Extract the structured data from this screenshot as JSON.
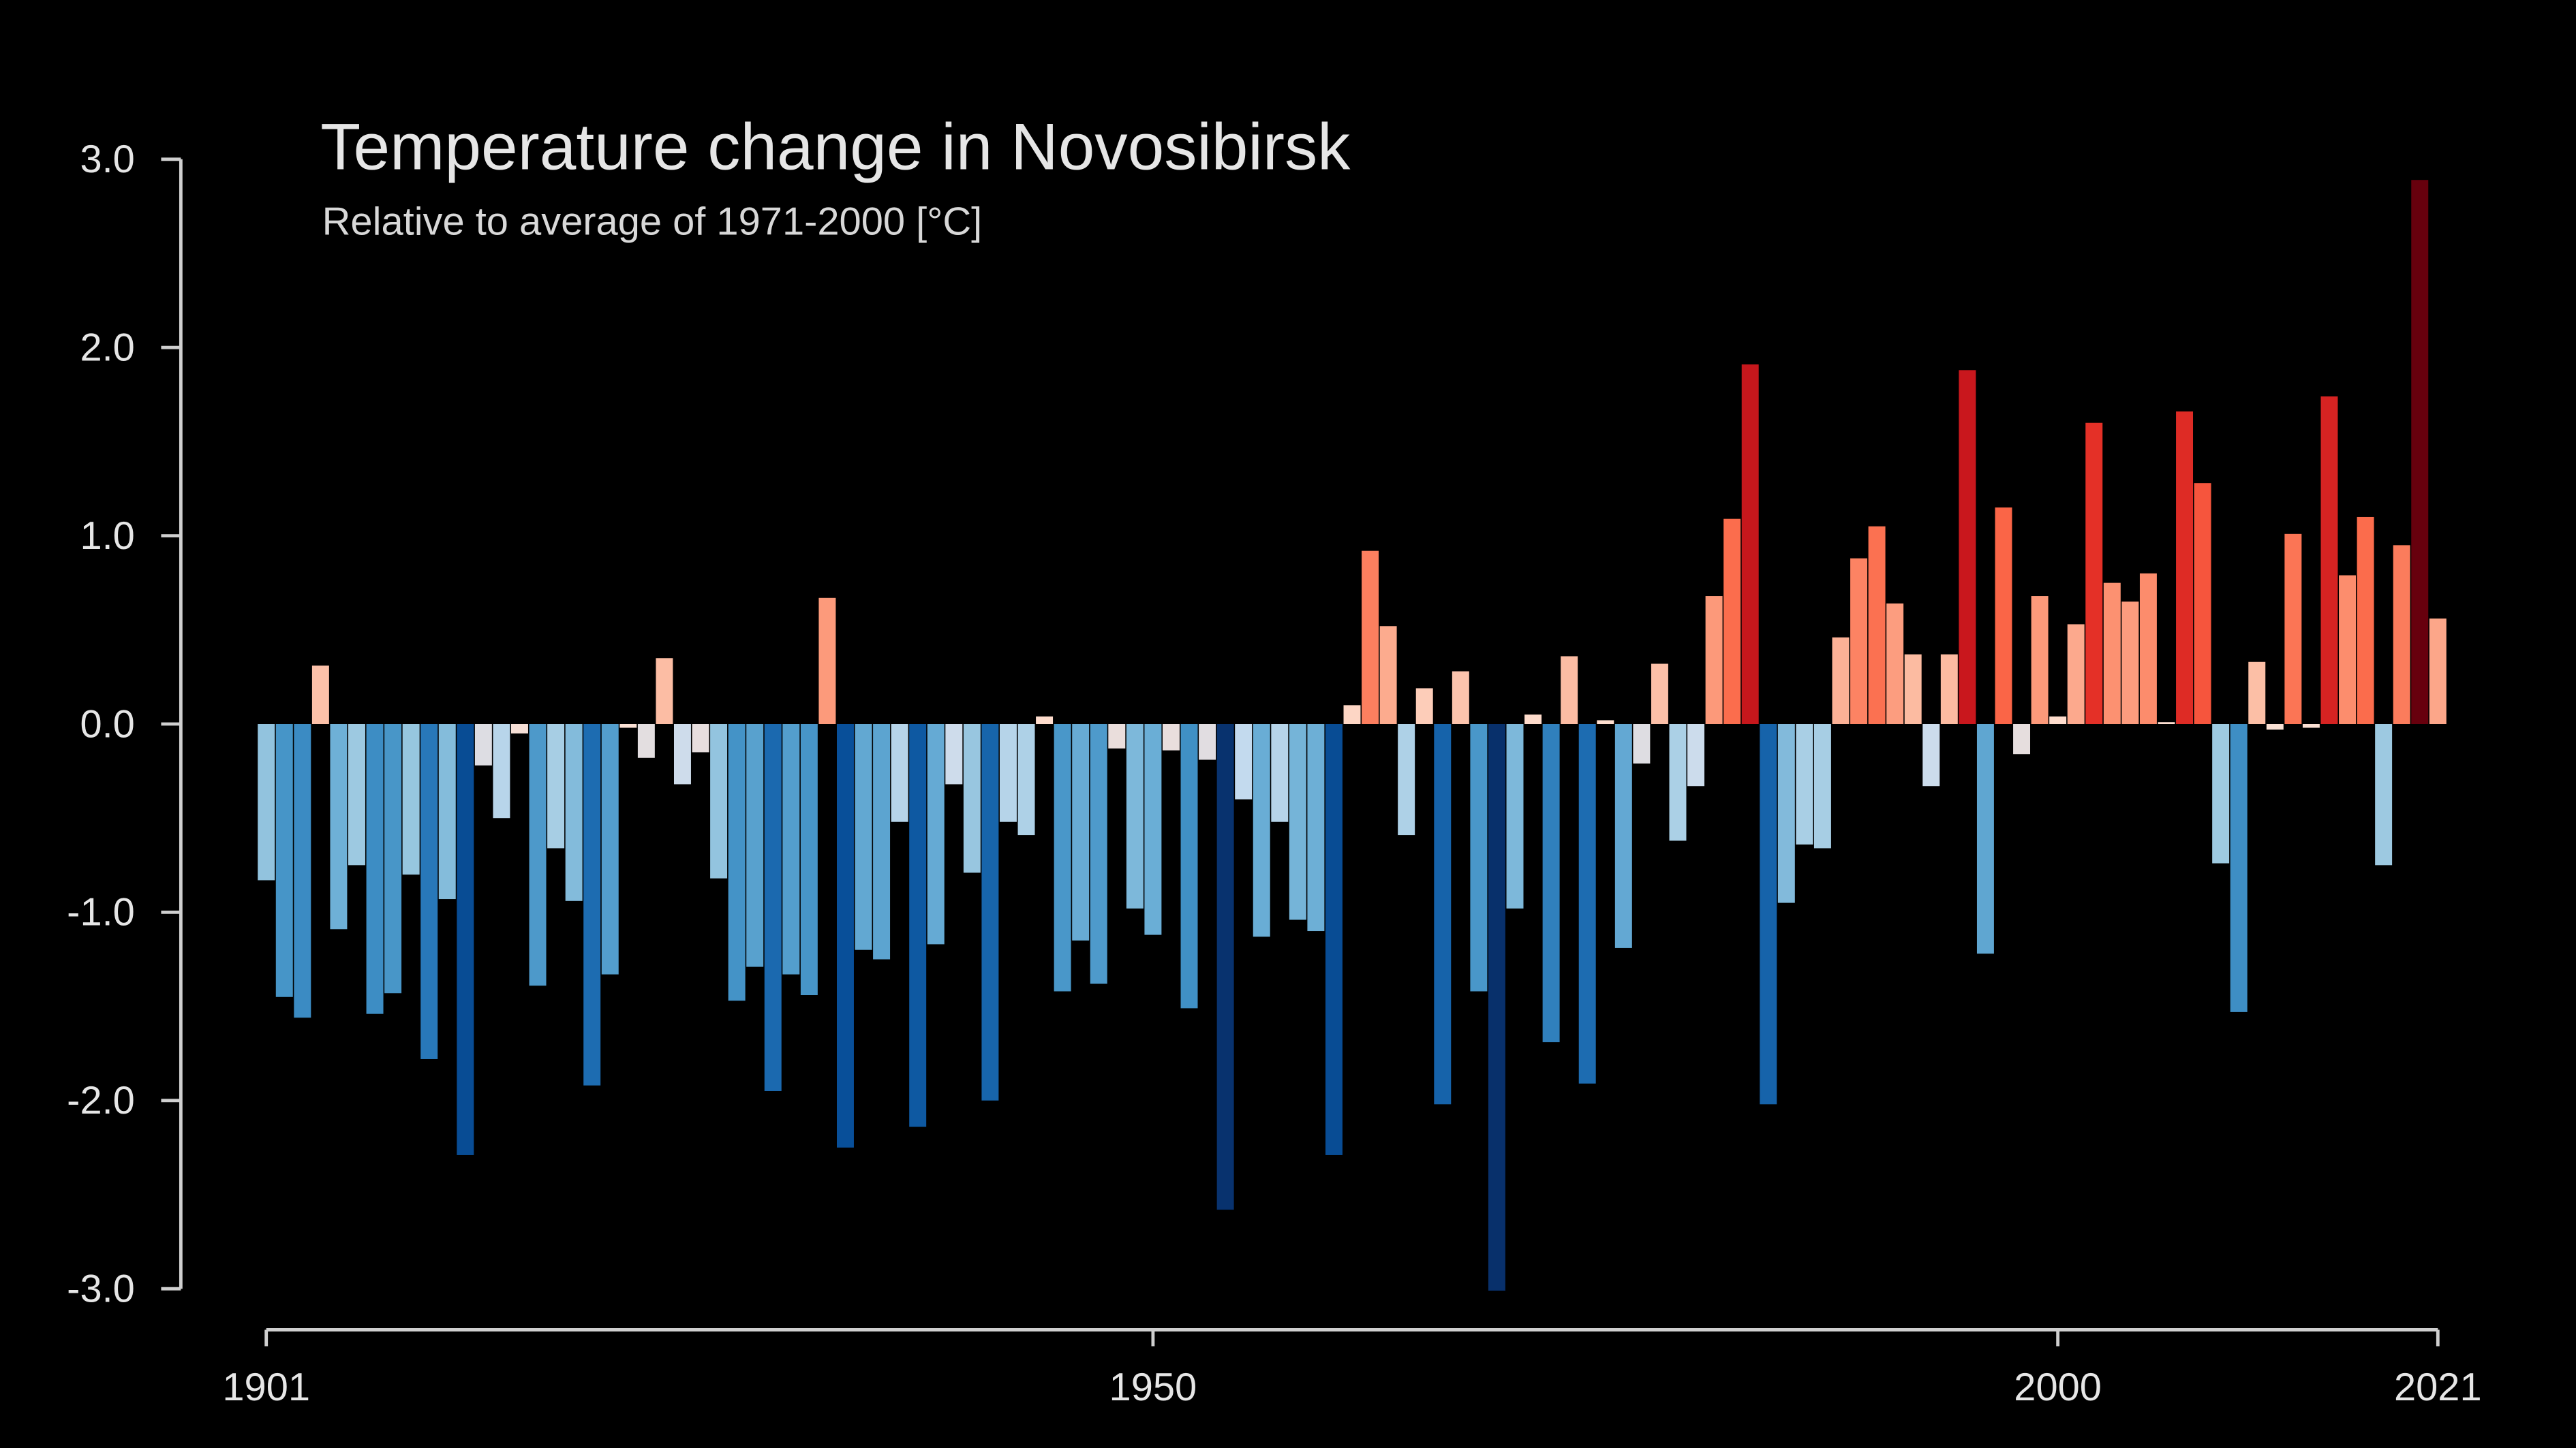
{
  "chart_data": {
    "type": "bar",
    "title": "Temperature change in Novosibirsk",
    "subtitle": "Relative to average of 1971-2000  [°C]",
    "x": [
      1901,
      1902,
      1903,
      1904,
      1905,
      1906,
      1907,
      1908,
      1909,
      1910,
      1911,
      1912,
      1913,
      1914,
      1915,
      1916,
      1917,
      1918,
      1919,
      1920,
      1921,
      1922,
      1923,
      1924,
      1925,
      1926,
      1927,
      1928,
      1929,
      1930,
      1931,
      1932,
      1933,
      1934,
      1935,
      1936,
      1937,
      1938,
      1939,
      1940,
      1941,
      1942,
      1943,
      1944,
      1945,
      1946,
      1947,
      1948,
      1949,
      1950,
      1951,
      1952,
      1953,
      1954,
      1955,
      1956,
      1957,
      1958,
      1959,
      1960,
      1961,
      1962,
      1963,
      1964,
      1965,
      1966,
      1967,
      1968,
      1969,
      1970,
      1971,
      1972,
      1973,
      1974,
      1975,
      1976,
      1977,
      1978,
      1979,
      1980,
      1981,
      1982,
      1983,
      1984,
      1985,
      1986,
      1987,
      1988,
      1989,
      1990,
      1991,
      1992,
      1993,
      1994,
      1995,
      1996,
      1997,
      1998,
      1999,
      2000,
      2001,
      2002,
      2003,
      2004,
      2005,
      2006,
      2007,
      2008,
      2009,
      2010,
      2011,
      2012,
      2013,
      2014,
      2015,
      2016,
      2017,
      2018,
      2019,
      2020,
      2021
    ],
    "values": [
      -0.83,
      -1.45,
      -1.56,
      0.31,
      -1.09,
      -0.75,
      -1.54,
      -1.43,
      -0.8,
      -1.78,
      -0.93,
      -2.29,
      -0.22,
      -0.5,
      -0.05,
      -1.39,
      -0.66,
      -0.94,
      -1.92,
      -1.33,
      -0.02,
      -0.18,
      0.35,
      -0.32,
      -0.15,
      -0.82,
      -1.47,
      -1.29,
      -1.95,
      -1.33,
      -1.44,
      0.67,
      -2.25,
      -1.2,
      -1.25,
      -0.52,
      -2.14,
      -1.17,
      -0.32,
      -0.79,
      -2.0,
      -0.52,
      -0.59,
      0.04,
      -1.42,
      -1.15,
      -1.38,
      -0.13,
      -0.98,
      -1.12,
      -0.14,
      -1.51,
      -0.19,
      -2.58,
      -0.4,
      -1.13,
      -0.52,
      -1.04,
      -1.1,
      -2.29,
      0.1,
      0.92,
      0.52,
      -0.59,
      0.19,
      -2.02,
      0.28,
      -1.42,
      -3.01,
      -0.98,
      0.05,
      -1.69,
      0.36,
      -1.91,
      0.02,
      -1.19,
      -0.21,
      0.32,
      -0.62,
      -0.33,
      0.68,
      1.09,
      1.91,
      -2.02,
      -0.95,
      -0.64,
      -0.66,
      0.46,
      0.88,
      1.05,
      0.64,
      0.37,
      -0.33,
      0.37,
      1.88,
      -1.22,
      1.15,
      -0.16,
      0.68,
      0.04,
      0.53,
      1.6,
      0.75,
      0.65,
      0.8,
      0.01,
      1.66,
      1.28,
      -0.74,
      -1.53,
      0.33,
      -0.03,
      1.01,
      -0.02,
      1.74,
      0.79,
      1.1,
      -0.75,
      0.95,
      2.89,
      0.56
    ],
    "xlim": [
      1901,
      2021
    ],
    "xticks": [
      1901,
      1950,
      2000,
      2021
    ],
    "ylim": [
      -3,
      3
    ],
    "yticks": [
      {
        "value": 3,
        "label": "3.0"
      },
      {
        "value": 2,
        "label": "2.0"
      },
      {
        "value": 1,
        "label": "1.0"
      },
      {
        "value": 0,
        "label": "0.0"
      },
      {
        "value": -1,
        "label": "-1.0"
      },
      {
        "value": -2,
        "label": "-2.0"
      },
      {
        "value": -3,
        "label": "-3.0"
      }
    ]
  }
}
